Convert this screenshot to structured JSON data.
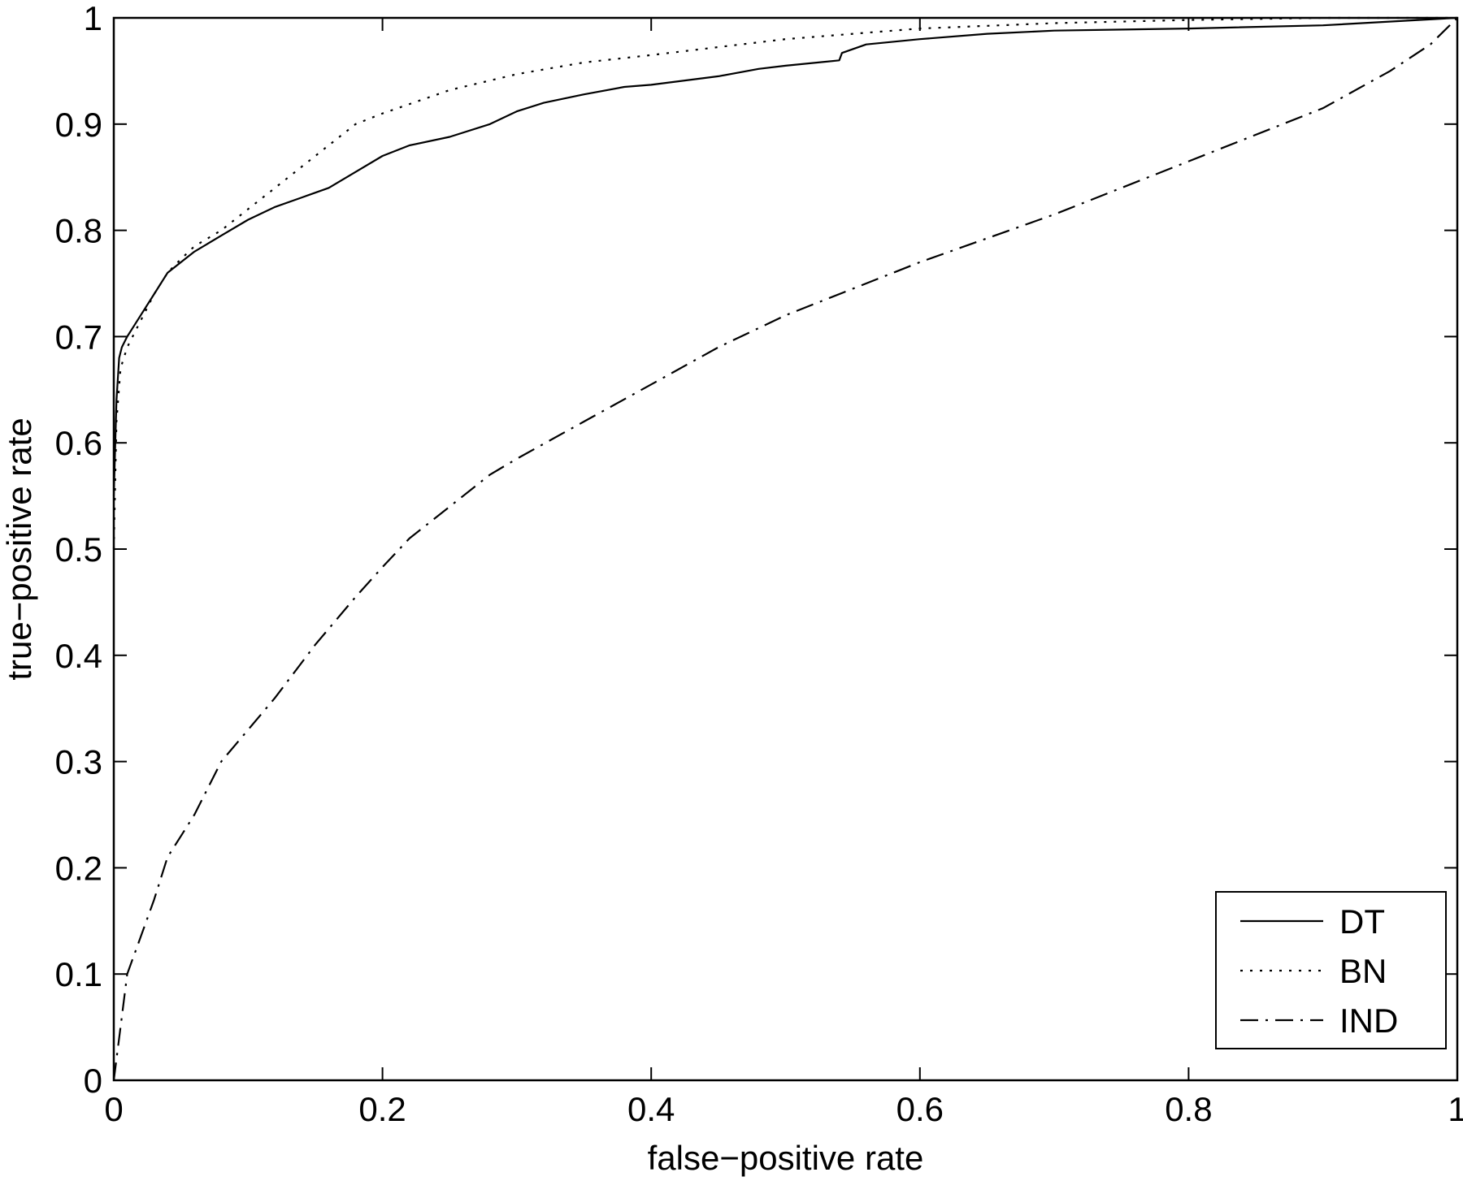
{
  "chart_data": {
    "type": "line",
    "xlabel": "false−positive rate",
    "ylabel": "true−positive rate",
    "xlim": [
      0,
      1
    ],
    "ylim": [
      0,
      1
    ],
    "x_ticks": [
      "0",
      "0.2",
      "0.4",
      "0.6",
      "0.8",
      "1"
    ],
    "y_ticks": [
      "0",
      "0.1",
      "0.2",
      "0.3",
      "0.4",
      "0.5",
      "0.6",
      "0.7",
      "0.8",
      "0.9",
      "1"
    ],
    "grid": false,
    "legend_position": "bottom-right",
    "series": [
      {
        "name": "DT",
        "style": "solid",
        "x": [
          0,
          0.002,
          0.004,
          0.006,
          0.01,
          0.015,
          0.02,
          0.03,
          0.04,
          0.05,
          0.06,
          0.08,
          0.1,
          0.12,
          0.14,
          0.16,
          0.18,
          0.2,
          0.22,
          0.25,
          0.28,
          0.3,
          0.32,
          0.35,
          0.38,
          0.4,
          0.45,
          0.48,
          0.5,
          0.54,
          0.542,
          0.56,
          0.6,
          0.65,
          0.7,
          0.8,
          0.9,
          1.0
        ],
        "y": [
          0.55,
          0.64,
          0.68,
          0.69,
          0.7,
          0.71,
          0.72,
          0.74,
          0.76,
          0.77,
          0.78,
          0.795,
          0.81,
          0.822,
          0.831,
          0.84,
          0.855,
          0.87,
          0.88,
          0.888,
          0.9,
          0.912,
          0.92,
          0.928,
          0.935,
          0.937,
          0.945,
          0.952,
          0.955,
          0.96,
          0.967,
          0.975,
          0.98,
          0.985,
          0.988,
          0.99,
          0.993,
          1.0
        ]
      },
      {
        "name": "BN",
        "style": "dotted",
        "x": [
          0,
          0.002,
          0.005,
          0.01,
          0.02,
          0.03,
          0.04,
          0.05,
          0.06,
          0.08,
          0.1,
          0.12,
          0.15,
          0.18,
          0.2,
          0.25,
          0.3,
          0.35,
          0.4,
          0.5,
          0.6,
          0.7,
          0.8,
          0.9,
          1.0
        ],
        "y": [
          0.5,
          0.62,
          0.67,
          0.69,
          0.715,
          0.74,
          0.76,
          0.773,
          0.785,
          0.8,
          0.82,
          0.84,
          0.87,
          0.9,
          0.91,
          0.932,
          0.947,
          0.958,
          0.965,
          0.98,
          0.99,
          0.995,
          0.998,
          1.0,
          1.0
        ]
      },
      {
        "name": "IND",
        "style": "dashdot",
        "x": [
          0,
          0.005,
          0.01,
          0.02,
          0.03,
          0.04,
          0.05,
          0.06,
          0.08,
          0.1,
          0.12,
          0.15,
          0.18,
          0.2,
          0.22,
          0.25,
          0.28,
          0.3,
          0.35,
          0.4,
          0.45,
          0.5,
          0.55,
          0.6,
          0.7,
          0.8,
          0.9,
          0.95,
          0.98,
          1.0
        ],
        "y": [
          0.0,
          0.05,
          0.1,
          0.135,
          0.17,
          0.21,
          0.23,
          0.25,
          0.3,
          0.33,
          0.36,
          0.41,
          0.455,
          0.483,
          0.51,
          0.54,
          0.57,
          0.585,
          0.62,
          0.655,
          0.69,
          0.72,
          0.745,
          0.77,
          0.815,
          0.865,
          0.915,
          0.95,
          0.975,
          1.0
        ]
      }
    ]
  }
}
